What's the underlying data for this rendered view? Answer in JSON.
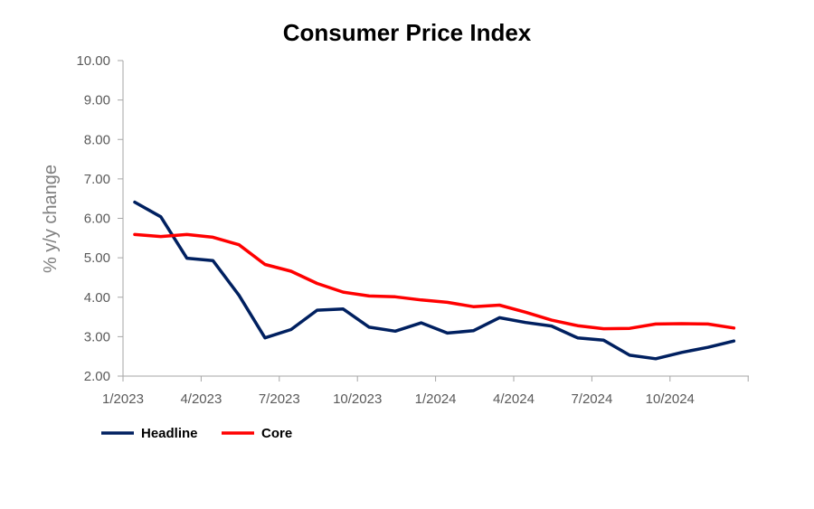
{
  "chart_data": {
    "type": "line",
    "title": "Consumer Price Index",
    "xlabel": "",
    "ylabel": "% y/y change",
    "ylim": [
      2.0,
      10.0
    ],
    "y_ticks": [
      "2.00",
      "3.00",
      "4.00",
      "5.00",
      "6.00",
      "7.00",
      "8.00",
      "9.00",
      "10.00"
    ],
    "x": [
      "1/2023",
      "2/2023",
      "3/2023",
      "4/2023",
      "5/2023",
      "6/2023",
      "7/2023",
      "8/2023",
      "9/2023",
      "10/2023",
      "11/2023",
      "12/2023",
      "1/2024",
      "2/2024",
      "3/2024",
      "4/2024",
      "5/2024",
      "6/2024",
      "7/2024",
      "8/2024",
      "9/2024",
      "10/2024",
      "11/2024",
      "12/2024"
    ],
    "x_tick_labels": [
      "1/2023",
      "4/2023",
      "7/2023",
      "10/2023",
      "1/2024",
      "4/2024",
      "7/2024",
      "10/2024"
    ],
    "legend_position": "bottom-left",
    "grid": false,
    "series": [
      {
        "name": "Headline",
        "color": "#002060",
        "values": [
          6.41,
          6.04,
          4.99,
          4.93,
          4.05,
          2.97,
          3.18,
          3.67,
          3.7,
          3.24,
          3.14,
          3.35,
          3.09,
          3.15,
          3.48,
          3.36,
          3.27,
          2.97,
          2.91,
          2.53,
          2.44,
          2.6,
          2.73,
          2.89
        ]
      },
      {
        "name": "Core",
        "color": "#ff0000",
        "values": [
          5.59,
          5.54,
          5.59,
          5.52,
          5.33,
          4.83,
          4.66,
          4.35,
          4.13,
          4.03,
          4.01,
          3.93,
          3.87,
          3.76,
          3.8,
          3.62,
          3.42,
          3.28,
          3.2,
          3.21,
          3.32,
          3.33,
          3.32,
          3.22
        ]
      }
    ]
  }
}
